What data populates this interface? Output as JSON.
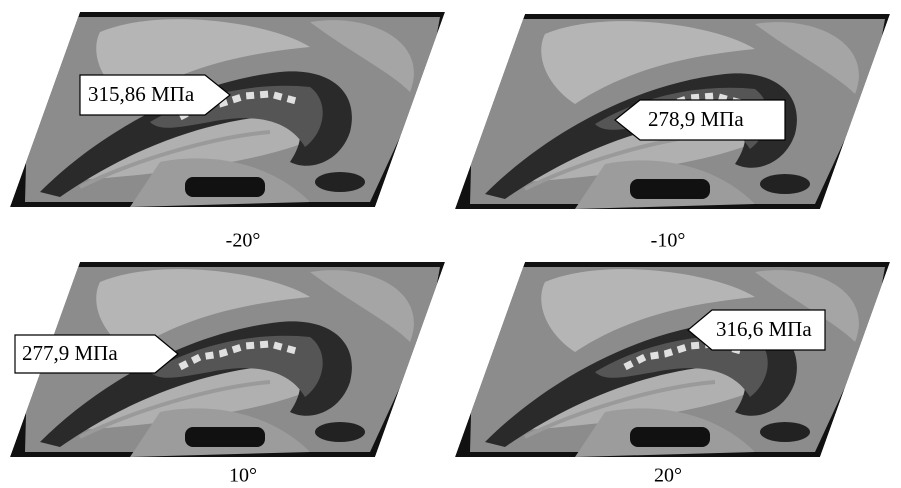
{
  "panels": [
    {
      "label": "315,86 МПа",
      "caption": "-20°"
    },
    {
      "label": "278,9 МПа",
      "caption": "-10°"
    },
    {
      "label": "277,9 МПа",
      "caption": "10°"
    },
    {
      "label": "316,6 МПа",
      "caption": "20°"
    }
  ]
}
